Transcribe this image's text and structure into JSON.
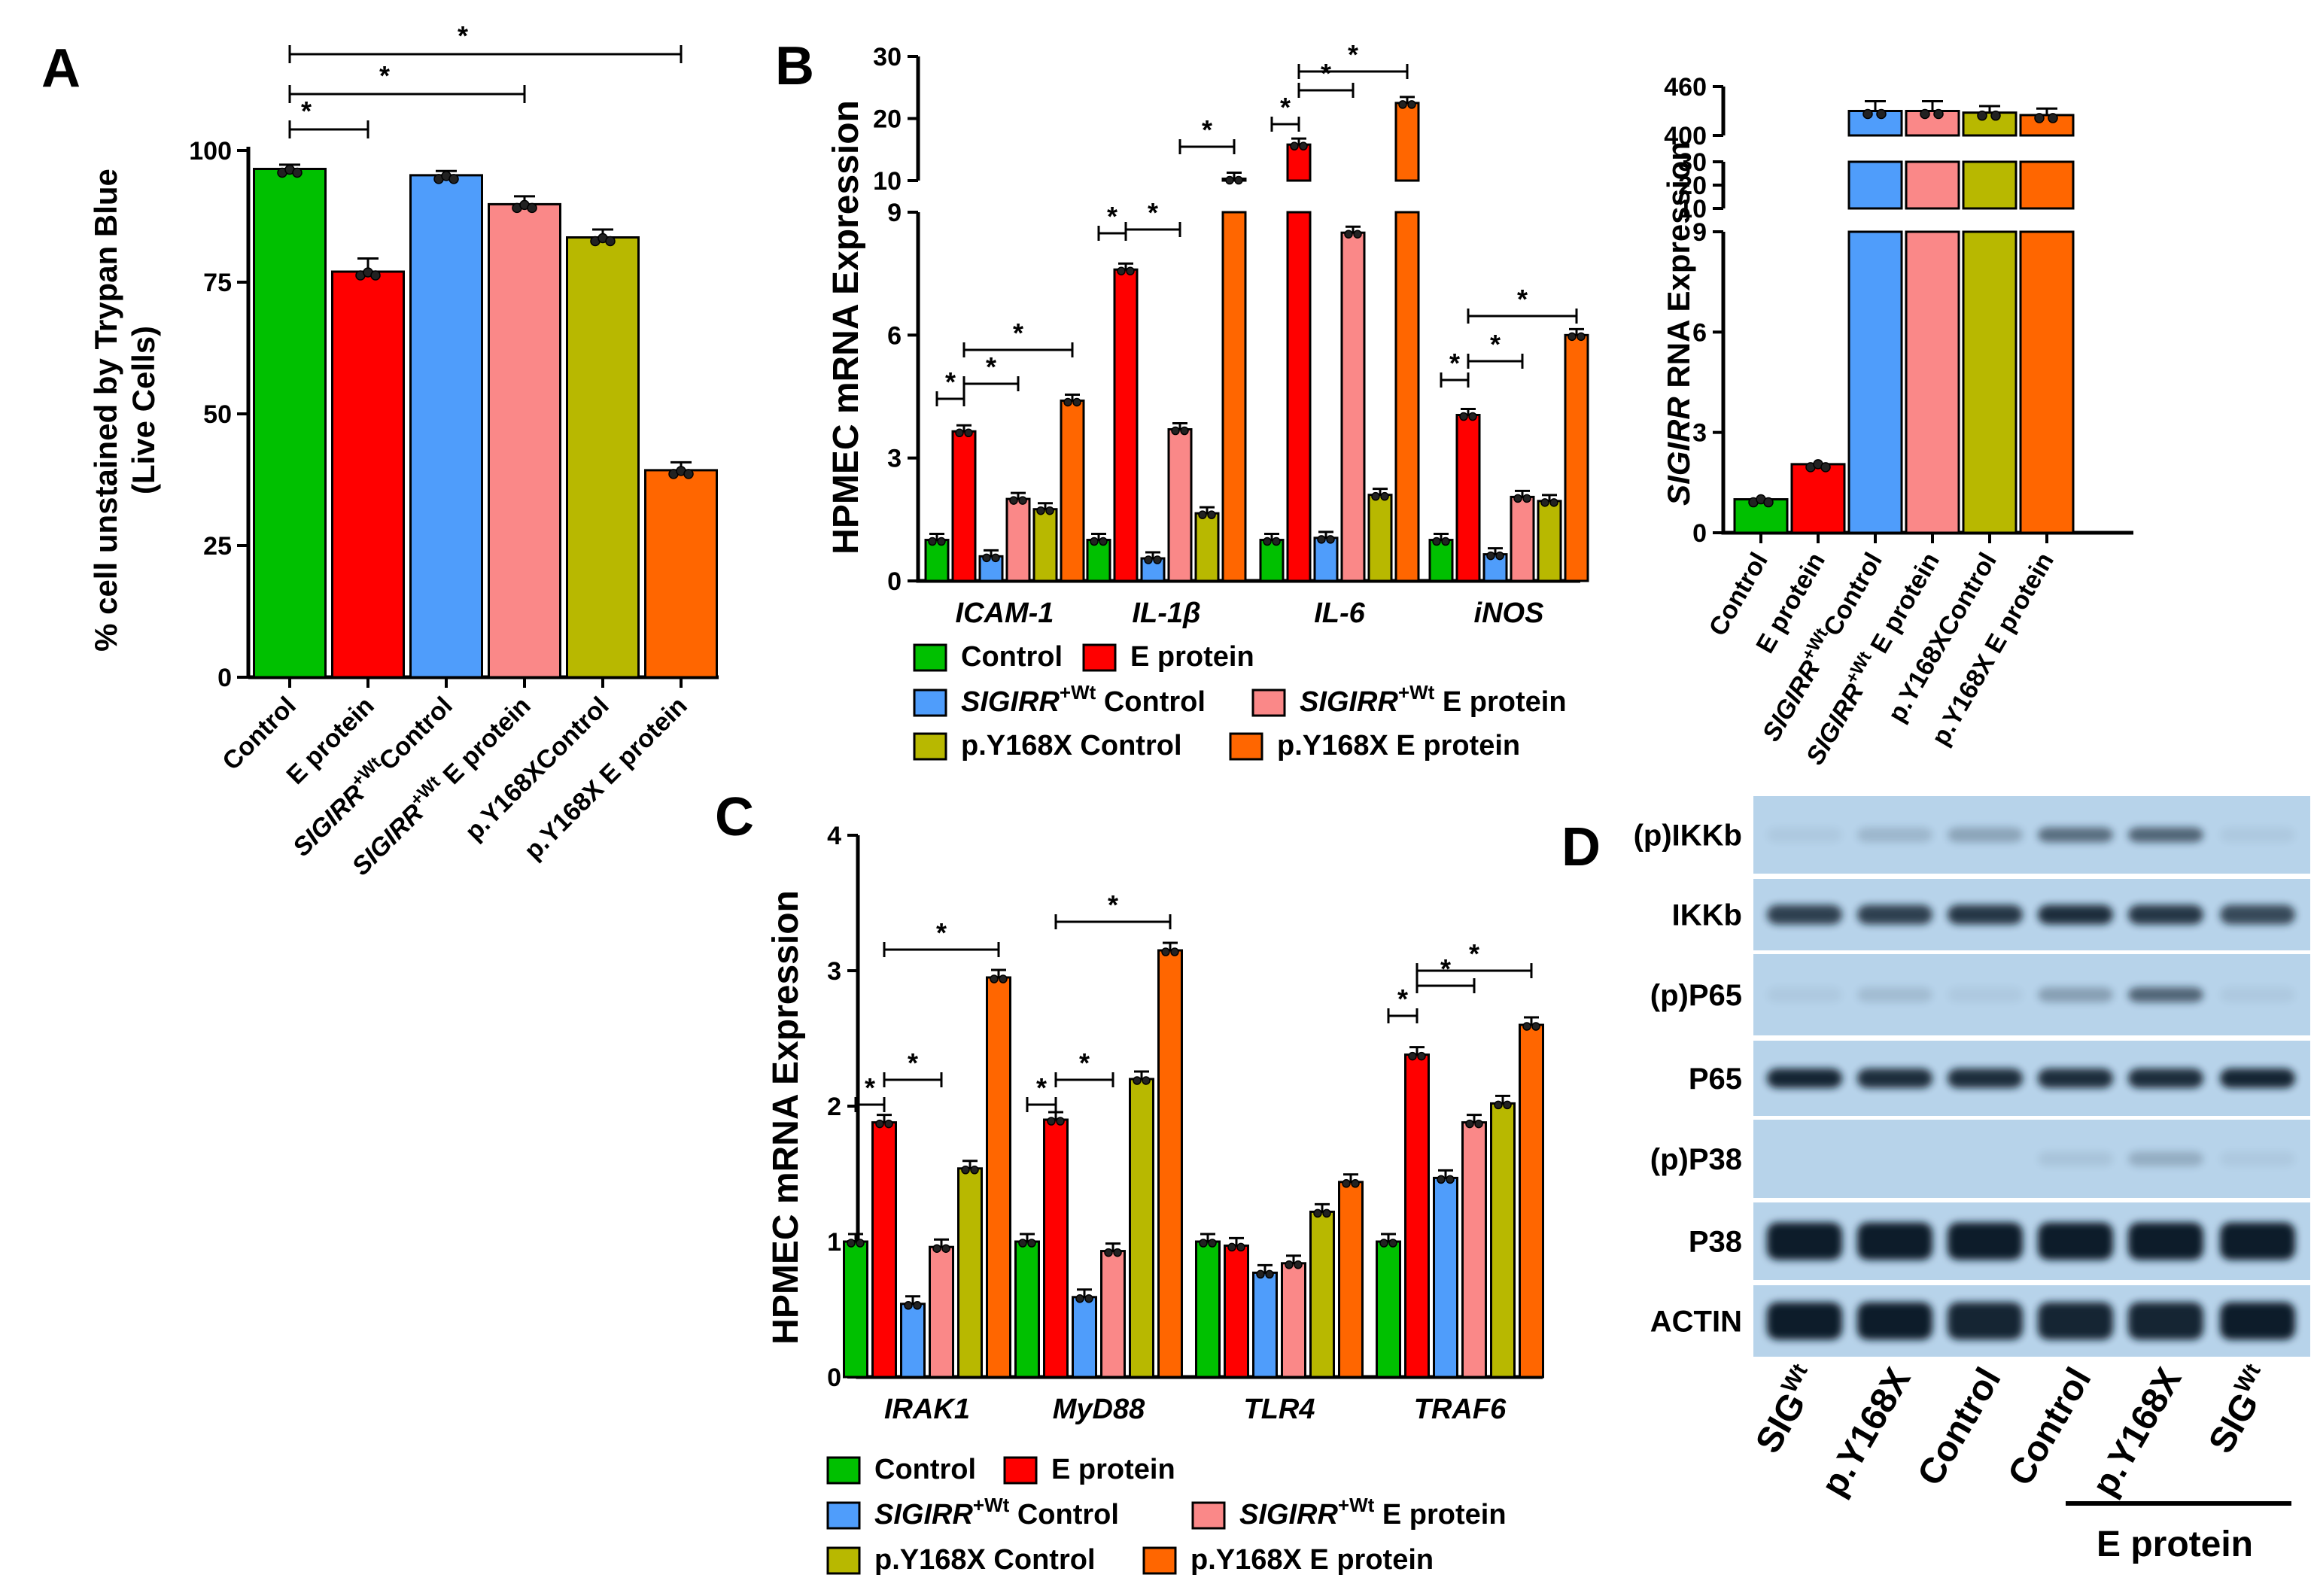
{
  "panels": {
    "a": {
      "label": "A"
    },
    "b": {
      "label": "B"
    },
    "c": {
      "label": "C"
    },
    "d": {
      "label": "D"
    }
  },
  "colors": {
    "control": "#00c000",
    "e_protein": "#ff0000",
    "sigirr_control": "#4f9dfb",
    "sigirr_e_protein": "#fa8888",
    "y168x_control": "#b8b800",
    "y168x_e_protein": "#ff6600"
  },
  "legend": [
    {
      "key": "control",
      "label": "Control",
      "italic_prefix": "",
      "sup": ""
    },
    {
      "key": "e_protein",
      "label": "E protein",
      "italic_prefix": "",
      "sup": ""
    },
    {
      "key": "sigirr_control",
      "label": " Control",
      "italic_prefix": "SIGIRR",
      "sup": "+Wt"
    },
    {
      "key": "sigirr_e_protein",
      "label": " E protein",
      "italic_prefix": "SIGIRR",
      "sup": "+Wt"
    },
    {
      "key": "y168x_control",
      "label": "p.Y168X Control",
      "italic_prefix": "",
      "sup": ""
    },
    {
      "key": "y168x_e_protein",
      "label": "p.Y168X E protein",
      "italic_prefix": "",
      "sup": ""
    }
  ],
  "x_labels": [
    {
      "pre": "",
      "sup": "",
      "post": "Control"
    },
    {
      "pre": "",
      "sup": "",
      "post": "E protein"
    },
    {
      "pre": "SIGIRR",
      "sup": "+Wt",
      "post": "Control"
    },
    {
      "pre": "SIGIRR",
      "sup": "+Wt",
      "post": " E protein"
    },
    {
      "pre": "",
      "sup": "",
      "post": "p.Y168XControl"
    },
    {
      "pre": "",
      "sup": "",
      "post": "p.Y168X E protein"
    }
  ],
  "chart_data": [
    {
      "type": "bar",
      "panel": "A",
      "ylabel_line1": "% cell unstained by Trypan Blue",
      "ylabel_line2": "(Live Cells)",
      "ylim": [
        0,
        100
      ],
      "yticks": [
        "0",
        "25",
        "50",
        "75",
        "100"
      ],
      "categories": [
        "Control",
        "E protein",
        "SIGIRR+Wt Control",
        "SIGIRR+Wt E protein",
        "p.Y168XControl",
        "p.Y168X E protein"
      ],
      "values": [
        96.5,
        77,
        95.3,
        89.8,
        83.5,
        39.3
      ],
      "errors": [
        0.8,
        2.5,
        0.8,
        1.5,
        1.5,
        1.5
      ],
      "significance": [
        {
          "from": 0,
          "to": 1,
          "label": "*"
        },
        {
          "from": 0,
          "to": 3,
          "label": "*"
        },
        {
          "from": 0,
          "to": 5,
          "label": "*"
        }
      ]
    },
    {
      "type": "bar",
      "panel": "B",
      "ylabel": "HPMEC mRNA Expression",
      "y_lower_ticks": [
        "0",
        "3",
        "6",
        "9"
      ],
      "y_upper_ticks": [
        "10",
        "20",
        "30"
      ],
      "groups": [
        "ICAM-1",
        "IL-1β",
        "IL-6",
        "iNOS"
      ],
      "series": [
        {
          "key": "control",
          "values": [
            1.0,
            1.0,
            1.0,
            1.0
          ]
        },
        {
          "key": "e_protein",
          "values": [
            3.65,
            7.6,
            15.8,
            4.05
          ]
        },
        {
          "key": "sigirr_control",
          "values": [
            0.6,
            0.55,
            1.05,
            0.65
          ]
        },
        {
          "key": "sigirr_e_protein",
          "values": [
            2.0,
            3.7,
            8.5,
            2.05
          ]
        },
        {
          "key": "y168x_control",
          "values": [
            1.75,
            1.65,
            2.1,
            1.95
          ]
        },
        {
          "key": "y168x_e_protein",
          "values": [
            4.4,
            10.3,
            22.5,
            6.0
          ]
        }
      ],
      "significance": [
        {
          "group": 0,
          "from": 0,
          "to": 1,
          "label": "*"
        },
        {
          "group": 0,
          "from": 1,
          "to": 3,
          "label": "*"
        },
        {
          "group": 0,
          "from": 1,
          "to": 5,
          "label": "*"
        },
        {
          "group": 1,
          "from": 0,
          "to": 1,
          "label": "*"
        },
        {
          "group": 1,
          "from": 1,
          "to": 3,
          "label": "*"
        },
        {
          "group": 1,
          "from": 3,
          "to": 5,
          "label": "*"
        },
        {
          "group": 2,
          "from": 0,
          "to": 1,
          "label": "*"
        },
        {
          "group": 2,
          "from": 1,
          "to": 3,
          "label": "*"
        },
        {
          "group": 2,
          "from": 1,
          "to": 5,
          "label": "*"
        },
        {
          "group": 3,
          "from": 0,
          "to": 1,
          "label": "*"
        },
        {
          "group": 3,
          "from": 1,
          "to": 3,
          "label": "*"
        },
        {
          "group": 3,
          "from": 1,
          "to": 5,
          "label": "*"
        }
      ]
    },
    {
      "type": "bar",
      "panel": "B-right",
      "ylabel_italic": "SIGIRR",
      "ylabel_rest": " RNA Expression",
      "y_lower_ticks": [
        "0",
        "3",
        "6",
        "9"
      ],
      "y_mid_ticks": [
        "10",
        "20",
        "30"
      ],
      "y_top_ticks": [
        "400",
        "460"
      ],
      "categories": [
        "Control",
        "E protein",
        "SIGIRR+Wt Control",
        "SIGIRR+Wt E protein",
        "p.Y168XControl",
        "p.Y168X E protein"
      ],
      "values": [
        1.0,
        2.05,
        430,
        430,
        428,
        425
      ],
      "errors": [
        0.05,
        0.08,
        12,
        12,
        8,
        8
      ]
    },
    {
      "type": "bar",
      "panel": "C",
      "ylabel": "HPMEC mRNA Expression",
      "ylim": [
        0,
        4
      ],
      "yticks": [
        "0",
        "1",
        "2",
        "3",
        "4"
      ],
      "groups": [
        "IRAK1",
        "MyD88",
        "TLR4",
        "TRAF6"
      ],
      "series": [
        {
          "key": "control",
          "values": [
            1.0,
            1.0,
            1.0,
            1.0
          ]
        },
        {
          "key": "e_protein",
          "values": [
            1.88,
            1.9,
            0.97,
            2.38
          ]
        },
        {
          "key": "sigirr_control",
          "values": [
            0.54,
            0.59,
            0.77,
            1.47
          ]
        },
        {
          "key": "sigirr_e_protein",
          "values": [
            0.96,
            0.93,
            0.84,
            1.88
          ]
        },
        {
          "key": "y168x_control",
          "values": [
            1.54,
            2.2,
            1.22,
            2.02
          ]
        },
        {
          "key": "y168x_e_protein",
          "values": [
            2.95,
            3.15,
            1.44,
            2.6
          ]
        }
      ],
      "significance": [
        {
          "group": 0,
          "from": 0,
          "to": 1,
          "label": "*"
        },
        {
          "group": 0,
          "from": 1,
          "to": 3,
          "label": "*"
        },
        {
          "group": 0,
          "from": 1,
          "to": 5,
          "label": "*"
        },
        {
          "group": 1,
          "from": 0,
          "to": 1,
          "label": "*"
        },
        {
          "group": 1,
          "from": 1,
          "to": 3,
          "label": "*"
        },
        {
          "group": 1,
          "from": 1,
          "to": 5,
          "label": "*"
        },
        {
          "group": 3,
          "from": 0,
          "to": 1,
          "label": "*"
        },
        {
          "group": 3,
          "from": 1,
          "to": 3,
          "label": "*"
        },
        {
          "group": 3,
          "from": 1,
          "to": 5,
          "label": "*"
        }
      ]
    }
  ],
  "western_blot": {
    "rows": [
      "(p)IKKb",
      "IKKb",
      "(p)P65",
      "P65",
      "(p)P38",
      "P38",
      "ACTIN"
    ],
    "intensity": [
      [
        0.05,
        0.15,
        0.25,
        0.55,
        0.6,
        0.05
      ],
      [
        0.8,
        0.8,
        0.85,
        0.9,
        0.85,
        0.75
      ],
      [
        0.05,
        0.12,
        0.05,
        0.28,
        0.6,
        0.05
      ],
      [
        0.95,
        0.9,
        0.9,
        0.9,
        0.9,
        0.95
      ],
      [
        0.0,
        0.0,
        0.0,
        0.08,
        0.2,
        0.05
      ],
      [
        1.0,
        1.0,
        1.0,
        1.0,
        1.0,
        1.0
      ],
      [
        1.0,
        1.0,
        0.95,
        0.95,
        0.95,
        1.0
      ]
    ],
    "lanes": [
      {
        "main": "SIG",
        "sup": "Wt"
      },
      {
        "main": "p.Y168X",
        "sup": ""
      },
      {
        "main": "Control",
        "sup": ""
      },
      {
        "main": "Control",
        "sup": ""
      },
      {
        "main": "p.Y168X",
        "sup": ""
      },
      {
        "main": "SIG",
        "sup": "Wt"
      }
    ],
    "group_label": "E protein"
  }
}
